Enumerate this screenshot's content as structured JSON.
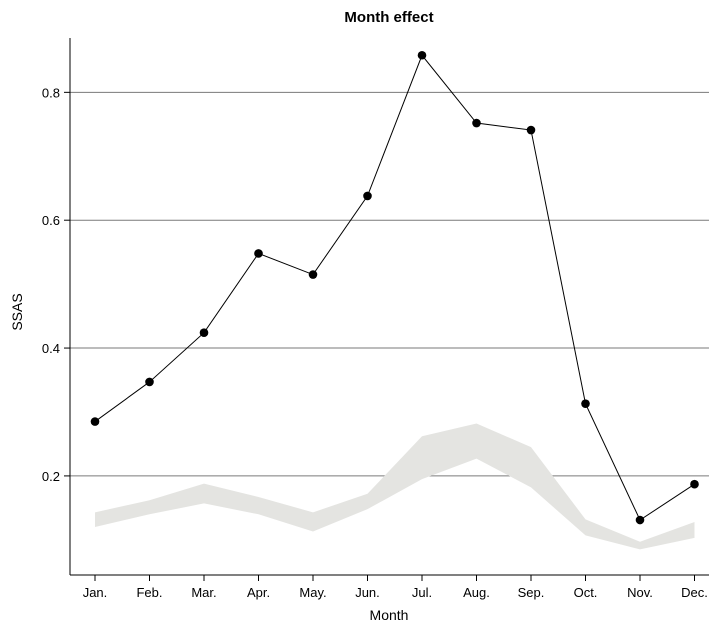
{
  "chart_data": {
    "type": "line",
    "title": "Month effect",
    "xlabel": "Month",
    "ylabel": "SSAS",
    "categories": [
      "Jan.",
      "Feb.",
      "Mar.",
      "Apr.",
      "May.",
      "Jun.",
      "Jul.",
      "Aug.",
      "Sep.",
      "Oct.",
      "Nov.",
      "Dec."
    ],
    "ylim": [
      0.045,
      0.885
    ],
    "yticks": [
      "0.2",
      "0.4",
      "0.6",
      "0.8"
    ],
    "grid": "horizontal",
    "series": [
      {
        "values": [
          0.285,
          0.347,
          0.424,
          0.548,
          0.515,
          0.638,
          0.858,
          0.752,
          0.741,
          0.313,
          0.131,
          0.187
        ]
      }
    ],
    "band": {
      "lower": [
        0.12,
        0.14,
        0.157,
        0.14,
        0.113,
        0.148,
        0.195,
        0.227,
        0.182,
        0.107,
        0.085,
        0.103
      ],
      "upper": [
        0.143,
        0.162,
        0.188,
        0.167,
        0.143,
        0.172,
        0.262,
        0.282,
        0.245,
        0.132,
        0.097,
        0.128
      ]
    },
    "colors": {
      "line": "#000000",
      "band": "#e4e4e1",
      "grid": "#7a7a7a"
    }
  }
}
